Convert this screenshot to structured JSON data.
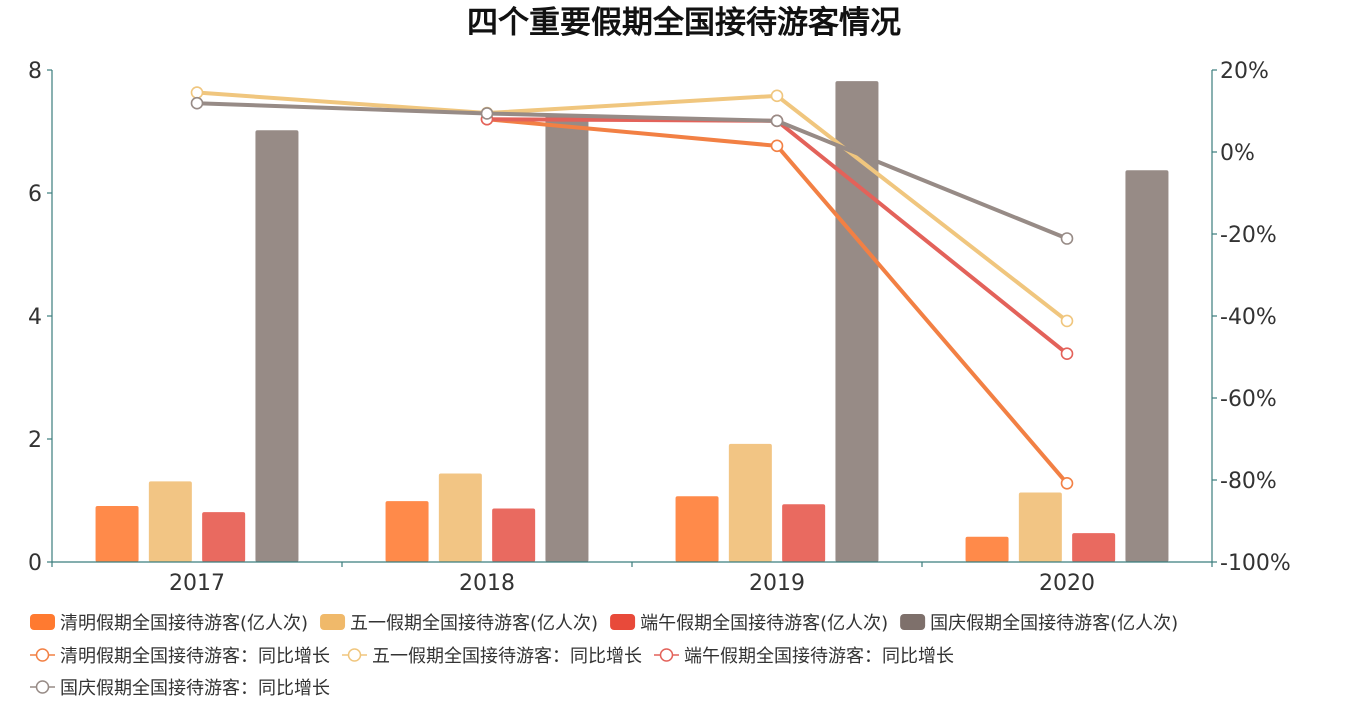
{
  "chart_data": {
    "type": "bar",
    "title": "四个重要假期全国接待游客情况",
    "categories": [
      "2017",
      "2018",
      "2019",
      "2020"
    ],
    "y_left": {
      "min": 0,
      "max": 8,
      "ticks": [
        "0",
        "2",
        "4",
        "6",
        "8"
      ]
    },
    "y_right": {
      "min": -100,
      "max": 20,
      "ticks": [
        "-100%",
        "-80%",
        "-60%",
        "-40%",
        "-20%",
        "0%",
        "20%"
      ]
    },
    "bar_series": [
      {
        "name": "清明假期全国接待游客(亿人次)",
        "color": "#ff8a4a",
        "legend_color": "#ff7a30",
        "values": [
          0.91,
          0.99,
          1.07,
          0.41
        ]
      },
      {
        "name": "五一假期全国接待游客(亿人次)",
        "color": "#f2c584",
        "legend_color": "#f0b96a",
        "values": [
          1.31,
          1.44,
          1.92,
          1.13
        ]
      },
      {
        "name": "端午假期全国接待游客(亿人次)",
        "color": "#e96a60",
        "legend_color": "#e84a3a",
        "values": [
          0.81,
          0.87,
          0.94,
          0.47
        ]
      },
      {
        "name": "国庆假期全国接待游客(亿人次)",
        "color": "#978b86",
        "legend_color": "#7e706b",
        "values": [
          7.02,
          7.26,
          7.82,
          6.37
        ]
      }
    ],
    "line_series": [
      {
        "name": "清明假期全国接待游客：同比增长",
        "color": "#f28044",
        "values": [
          null,
          8.0,
          1.5,
          -80.8
        ]
      },
      {
        "name": "五一假期全国接待游客：同比增长",
        "color": "#f0c67e",
        "values": [
          14.5,
          9.5,
          13.7,
          -41.2
        ]
      },
      {
        "name": "端午假期全国接待游客：同比增长",
        "color": "#e3625a",
        "values": [
          null,
          8.0,
          7.6,
          -49.2
        ]
      },
      {
        "name": "国庆假期全国接待游客：同比增长",
        "color": "#978b86",
        "values": [
          11.9,
          9.4,
          7.6,
          -21.1
        ]
      }
    ],
    "legend_position": "bottom",
    "axis_color": "#3b7d7d"
  }
}
